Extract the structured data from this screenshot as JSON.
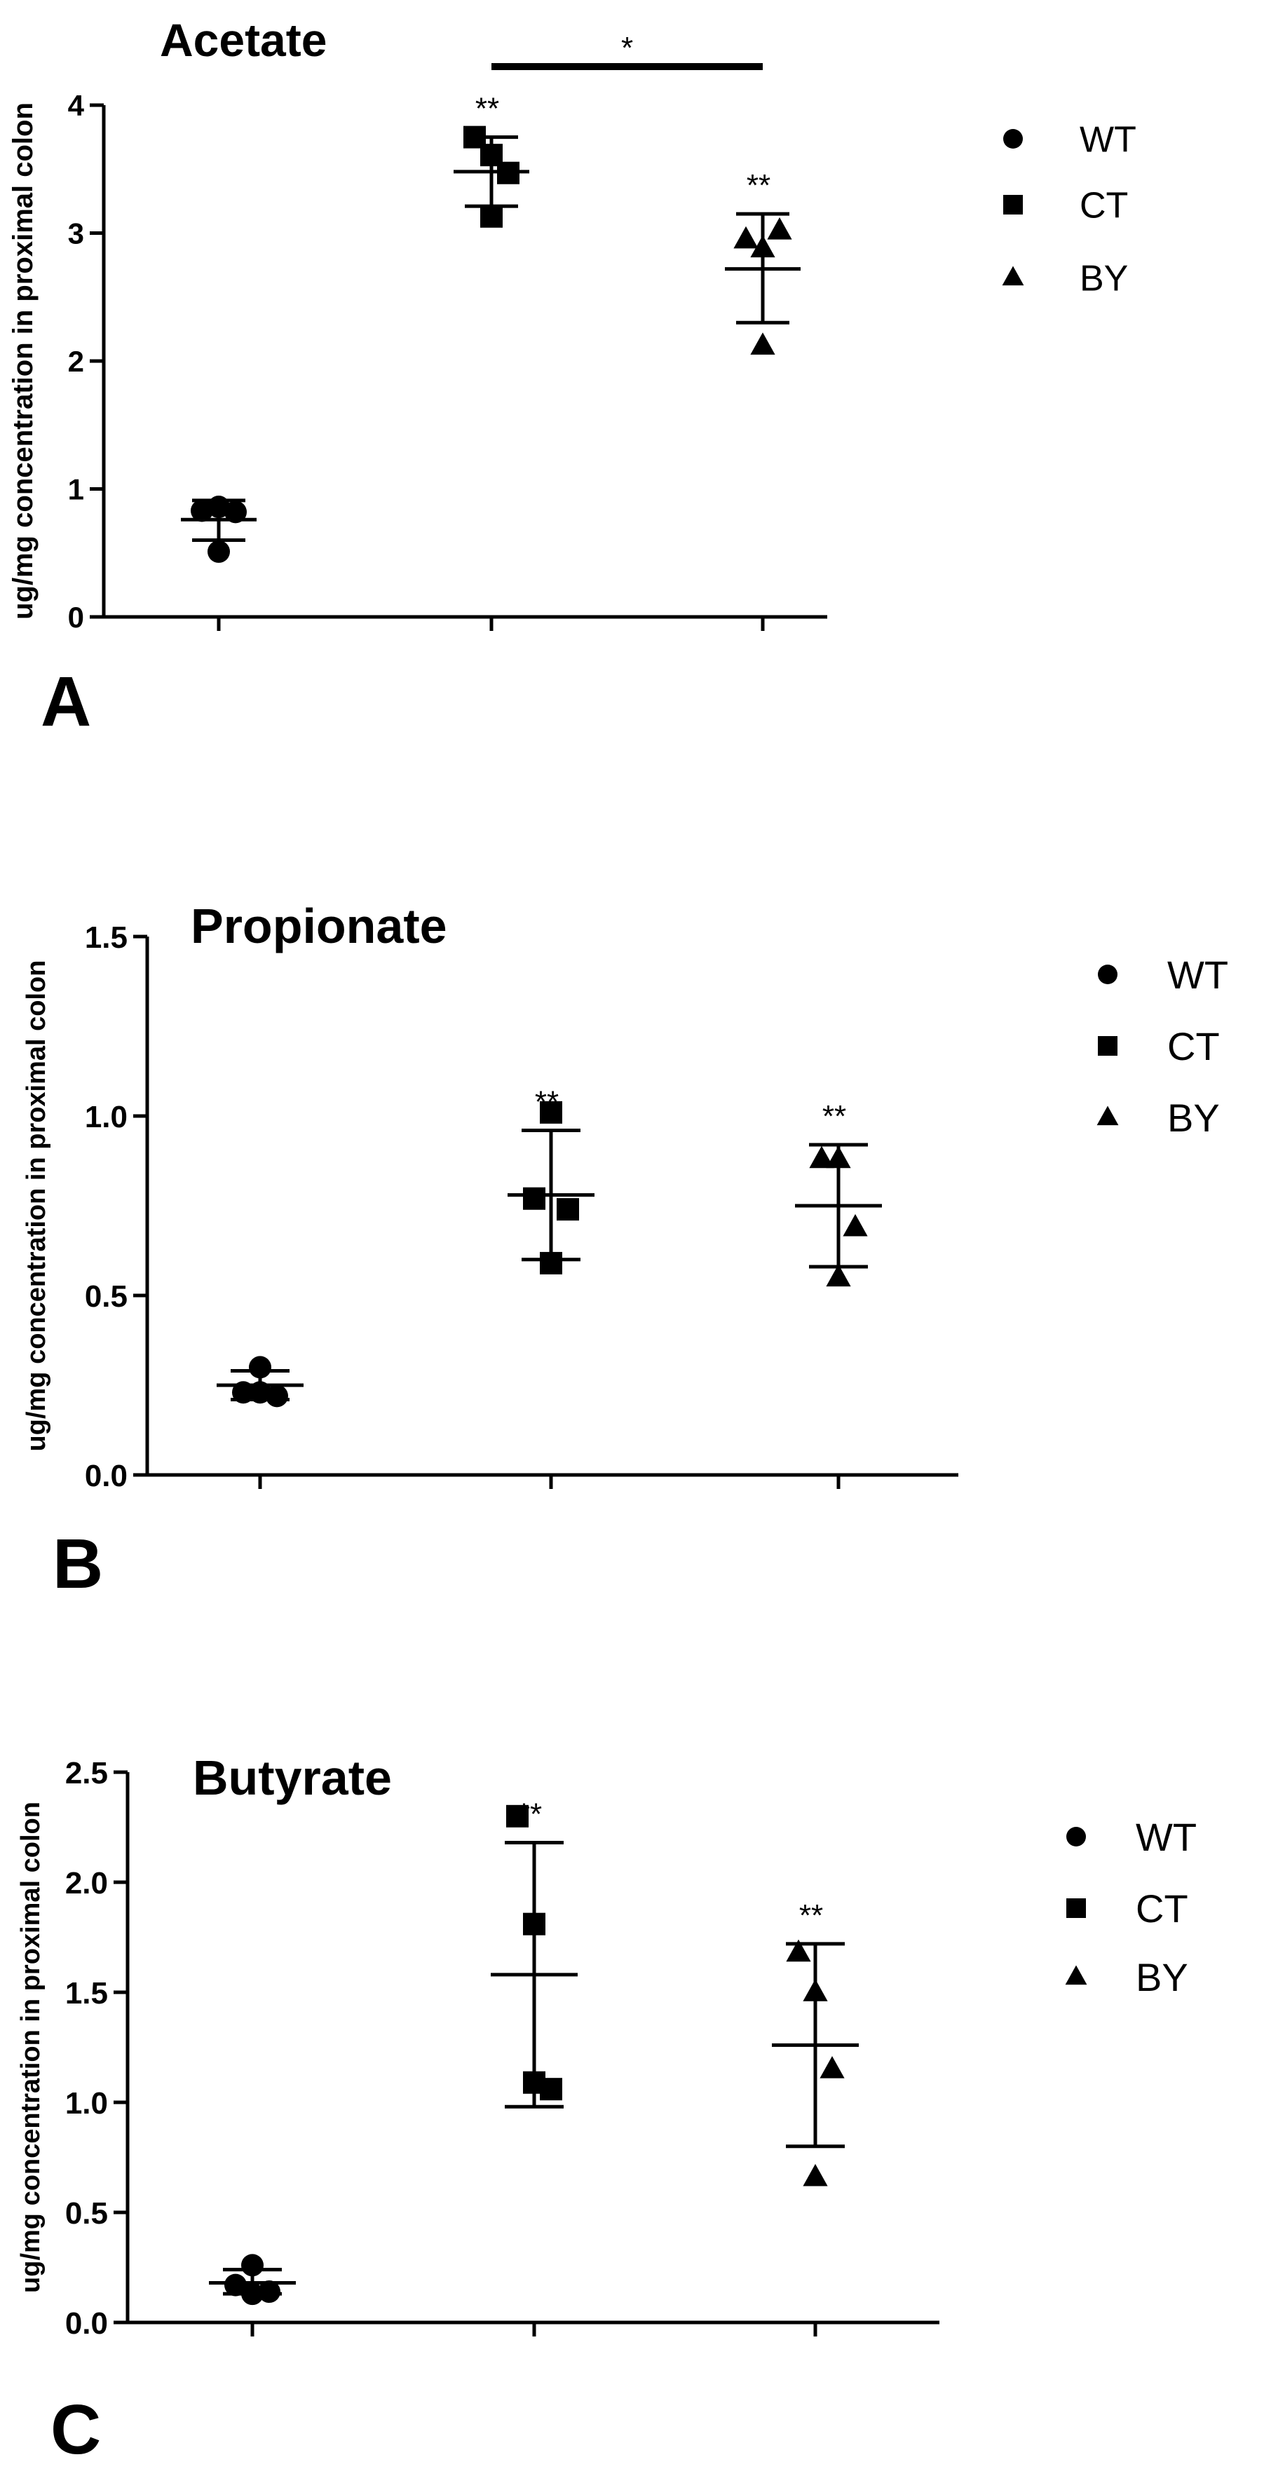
{
  "chart_data": [
    {
      "type": "scatter",
      "panel_label": "A",
      "title": "Acetate",
      "ylabel": "ug/mg concentration in proximal colon",
      "xlabel": "",
      "ylim": [
        0,
        4
      ],
      "yticks": [
        "0",
        "1",
        "2",
        "3",
        "4"
      ],
      "grid": false,
      "legend_position": "right",
      "categories": [
        "WT",
        "CT",
        "BY"
      ],
      "series": [
        {
          "name": "WT",
          "marker": "circle",
          "points": [
            0.83,
            0.86,
            0.82,
            0.51
          ],
          "mean": 0.76,
          "sd_low": 0.6,
          "sd_high": 0.91,
          "annotation": ""
        },
        {
          "name": "CT",
          "marker": "square",
          "points": [
            3.75,
            3.61,
            3.47,
            3.13
          ],
          "mean": 3.48,
          "sd_low": 3.21,
          "sd_high": 3.75,
          "annotation": "**"
        },
        {
          "name": "BY",
          "marker": "triangle",
          "points": [
            2.95,
            2.88,
            3.02,
            2.12
          ],
          "mean": 2.72,
          "sd_low": 2.3,
          "sd_high": 3.15,
          "annotation": "**"
        }
      ],
      "comparison": {
        "from": "CT",
        "to": "BY",
        "label": "*"
      }
    },
    {
      "type": "scatter",
      "panel_label": "B",
      "title": "Propionate",
      "ylabel": "ug/mg concentration in proximal colon",
      "xlabel": "",
      "ylim": [
        0,
        1.5
      ],
      "yticks": [
        "0.0",
        "0.5",
        "1.0",
        "1.5"
      ],
      "grid": false,
      "legend_position": "right",
      "categories": [
        "WT",
        "CT",
        "BY"
      ],
      "series": [
        {
          "name": "WT",
          "marker": "circle",
          "points": [
            0.23,
            0.3,
            0.22,
            0.23
          ],
          "mean": 0.25,
          "sd_low": 0.21,
          "sd_high": 0.29,
          "annotation": ""
        },
        {
          "name": "CT",
          "marker": "square",
          "points": [
            0.77,
            1.01,
            0.74,
            0.59
          ],
          "mean": 0.78,
          "sd_low": 0.6,
          "sd_high": 0.96,
          "annotation": "**"
        },
        {
          "name": "BY",
          "marker": "triangle",
          "points": [
            0.88,
            0.88,
            0.69,
            0.55
          ],
          "mean": 0.75,
          "sd_low": 0.58,
          "sd_high": 0.92,
          "annotation": "**"
        }
      ]
    },
    {
      "type": "scatter",
      "panel_label": "C",
      "title": "Butyrate",
      "ylabel": "ug/mg concentration in proximal colon",
      "xlabel": "",
      "ylim": [
        0,
        2.5
      ],
      "yticks": [
        "0.0",
        "0.5",
        "1.0",
        "1.5",
        "2.0",
        "2.5"
      ],
      "grid": false,
      "legend_position": "right",
      "categories": [
        "WT",
        "CT",
        "BY"
      ],
      "series": [
        {
          "name": "WT",
          "marker": "circle",
          "points": [
            0.17,
            0.13,
            0.14,
            0.26
          ],
          "mean": 0.18,
          "sd_low": 0.13,
          "sd_high": 0.24,
          "annotation": ""
        },
        {
          "name": "CT",
          "marker": "square",
          "points": [
            2.3,
            1.81,
            1.06,
            1.09
          ],
          "mean": 1.58,
          "sd_low": 0.98,
          "sd_high": 2.18,
          "annotation": "**"
        },
        {
          "name": "BY",
          "marker": "triangle",
          "points": [
            1.68,
            1.5,
            1.15,
            0.66
          ],
          "mean": 1.26,
          "sd_low": 0.8,
          "sd_high": 1.72,
          "annotation": "**"
        }
      ]
    }
  ]
}
